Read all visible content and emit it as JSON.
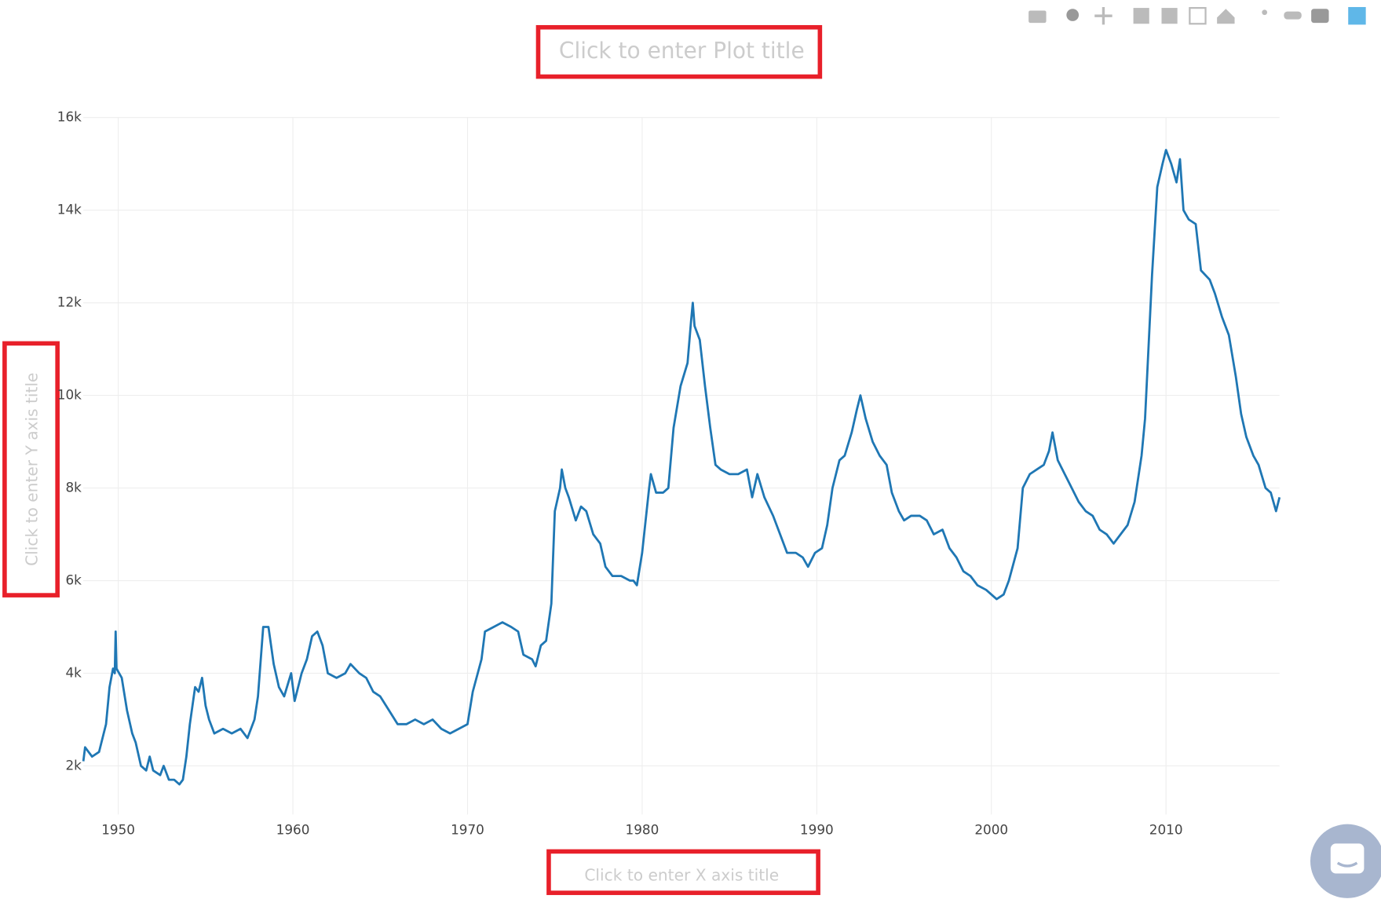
{
  "chart_data": {
    "type": "line",
    "title": "Click to enter Plot title",
    "x_label": "Click to enter X axis title",
    "y_label": "Click to enter Y axis title",
    "xlim": [
      1948,
      2016.5
    ],
    "ylim": [
      950,
      16200
    ],
    "xticks": [
      1950,
      1960,
      1970,
      1980,
      1990,
      2000,
      2010
    ],
    "yticks": [
      {
        "value": 2000,
        "label": "2k"
      },
      {
        "value": 4000,
        "label": "4k"
      },
      {
        "value": 6000,
        "label": "6k"
      },
      {
        "value": 8000,
        "label": "8k"
      },
      {
        "value": 10000,
        "label": "10k"
      },
      {
        "value": 12000,
        "label": "12k"
      },
      {
        "value": 14000,
        "label": "14k"
      },
      {
        "value": 16000,
        "label": "16k"
      }
    ],
    "grid": true,
    "x": [
      1948.0,
      1948.1,
      1948.5,
      1948.9,
      1949.3,
      1949.5,
      1949.7,
      1949.8,
      1949.85,
      1949.9,
      1950.2,
      1950.5,
      1950.8,
      1951.0,
      1951.3,
      1951.6,
      1951.8,
      1952.0,
      1952.4,
      1952.6,
      1952.9,
      1953.2,
      1953.5,
      1953.7,
      1953.9,
      1954.1,
      1954.4,
      1954.6,
      1954.8,
      1955.0,
      1955.2,
      1955.5,
      1956.0,
      1956.5,
      1957.0,
      1957.4,
      1957.8,
      1958.0,
      1958.3,
      1958.6,
      1958.9,
      1959.2,
      1959.5,
      1959.9,
      1960.1,
      1960.5,
      1960.8,
      1961.1,
      1961.4,
      1961.7,
      1962.0,
      1962.5,
      1963.0,
      1963.3,
      1963.8,
      1964.2,
      1964.6,
      1965.0,
      1965.5,
      1966.0,
      1966.5,
      1967.0,
      1967.5,
      1968.0,
      1968.5,
      1969.0,
      1969.5,
      1970.0,
      1970.3,
      1970.8,
      1971.0,
      1971.5,
      1972.0,
      1972.5,
      1972.9,
      1973.2,
      1973.7,
      1973.9,
      1974.2,
      1974.5,
      1974.8,
      1975.0,
      1975.3,
      1975.4,
      1975.6,
      1975.8,
      1976.2,
      1976.5,
      1976.8,
      1977.2,
      1977.6,
      1977.9,
      1978.3,
      1978.8,
      1979.3,
      1979.5,
      1979.7,
      1980.0,
      1980.4,
      1980.5,
      1980.8,
      1981.2,
      1981.5,
      1981.8,
      1982.2,
      1982.6,
      1982.8,
      1982.9,
      1983.0,
      1983.3,
      1983.6,
      1983.9,
      1984.2,
      1984.5,
      1985.0,
      1985.5,
      1986.0,
      1986.3,
      1986.6,
      1987.0,
      1987.5,
      1987.9,
      1988.3,
      1988.8,
      1989.2,
      1989.5,
      1989.9,
      1990.3,
      1990.6,
      1990.9,
      1991.3,
      1991.6,
      1992.0,
      1992.3,
      1992.5,
      1992.8,
      1993.2,
      1993.6,
      1994.0,
      1994.3,
      1994.7,
      1995.0,
      1995.4,
      1995.9,
      1996.3,
      1996.7,
      1997.2,
      1997.6,
      1998.0,
      1998.4,
      1998.8,
      1999.2,
      1999.7,
      2000.0,
      2000.3,
      2000.7,
      2001.0,
      2001.5,
      2001.8,
      2002.2,
      2002.6,
      2003.0,
      2003.3,
      2003.5,
      2003.8,
      2004.2,
      2004.6,
      2005.0,
      2005.4,
      2005.8,
      2006.2,
      2006.6,
      2007.0,
      2007.4,
      2007.8,
      2008.2,
      2008.6,
      2008.8,
      2009.2,
      2009.5,
      2009.8,
      2010.0,
      2010.3,
      2010.6,
      2010.8,
      2011.0,
      2011.3,
      2011.7,
      2012.0,
      2012.5,
      2012.8,
      2013.2,
      2013.6,
      2014.0,
      2014.3,
      2014.6,
      2015.0,
      2015.3,
      2015.7,
      2016.0,
      2016.3,
      2016.5
    ],
    "series": [
      {
        "color": "#1f77b4",
        "values": [
          2100,
          2400,
          2200,
          2300,
          2900,
          3700,
          4100,
          4000,
          4900,
          4100,
          3900,
          3200,
          2700,
          2500,
          2000,
          1900,
          2200,
          1900,
          1800,
          2000,
          1700,
          1700,
          1600,
          1700,
          2200,
          2900,
          3700,
          3600,
          3900,
          3300,
          3000,
          2700,
          2800,
          2700,
          2800,
          2600,
          3000,
          3500,
          5000,
          5000,
          4200,
          3700,
          3500,
          4000,
          3400,
          4000,
          4300,
          4800,
          4900,
          4600,
          4000,
          3900,
          4000,
          4200,
          4000,
          3900,
          3600,
          3500,
          3200,
          2900,
          2900,
          3000,
          2900,
          3000,
          2800,
          2700,
          2800,
          2900,
          3600,
          4300,
          4900,
          5000,
          5100,
          5000,
          4900,
          4400,
          4300,
          4150,
          4600,
          4700,
          5500,
          7500,
          8000,
          8400,
          8000,
          7800,
          7300,
          7600,
          7500,
          7000,
          6800,
          6300,
          6100,
          6100,
          6000,
          6000,
          5900,
          6600,
          8000,
          8300,
          7900,
          7900,
          8000,
          9300,
          10200,
          10700,
          11600,
          12000,
          11500,
          11200,
          10200,
          9300,
          8500,
          8400,
          8300,
          8300,
          8400,
          7800,
          8300,
          7800,
          7400,
          7000,
          6600,
          6600,
          6500,
          6300,
          6600,
          6700,
          7200,
          8000,
          8600,
          8700,
          9200,
          9700,
          10000,
          9500,
          9000,
          8700,
          8500,
          7900,
          7500,
          7300,
          7400,
          7400,
          7300,
          7000,
          7100,
          6700,
          6500,
          6200,
          6100,
          5900,
          5800,
          5700,
          5600,
          5700,
          6000,
          6700,
          8000,
          8300,
          8400,
          8500,
          8800,
          9200,
          8600,
          8300,
          8000,
          7700,
          7500,
          7400,
          7100,
          7000,
          6800,
          7000,
          7200,
          7700,
          8700,
          9500,
          12600,
          14500,
          15000,
          15300,
          15000,
          14600,
          15100,
          14000,
          13800,
          13700,
          12700,
          12500,
          12200,
          11700,
          11300,
          10400,
          9600,
          9100,
          8700,
          8500,
          8000,
          7900,
          7500,
          7800
        ]
      }
    ]
  }
}
